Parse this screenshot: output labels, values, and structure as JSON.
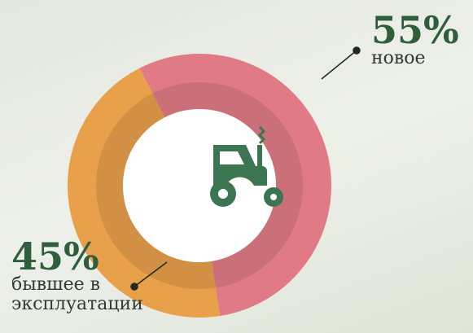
{
  "chart_data": {
    "type": "pie",
    "categories": [
      "новое",
      "бывшее в эксплуатации"
    ],
    "values": [
      55,
      45
    ],
    "value_labels": [
      "55%",
      "45%"
    ],
    "colors": [
      "#e07b85",
      "#e9a04a"
    ]
  }
}
